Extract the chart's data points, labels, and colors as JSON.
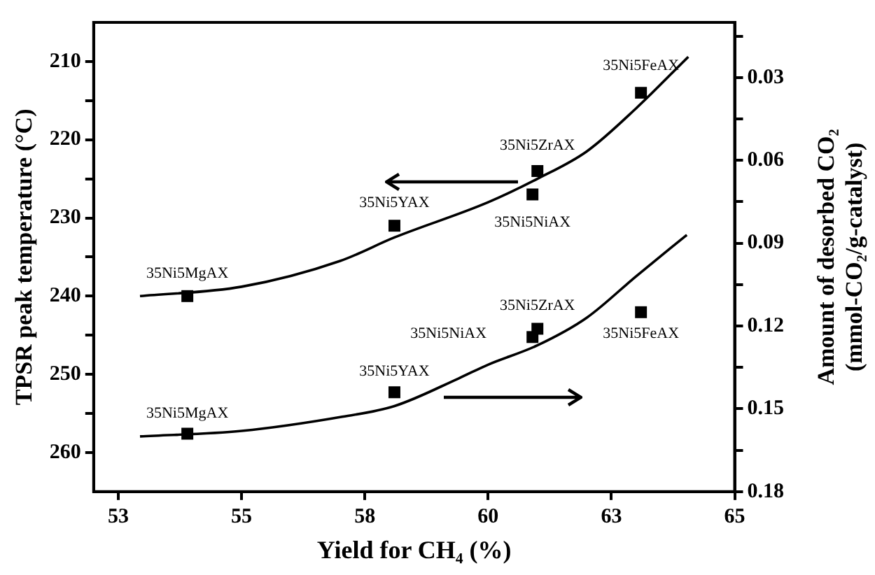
{
  "chart_data": {
    "type": "scatter",
    "xlabel": "Yield for CH₄ (%)",
    "ylabel": "TPSR peak temperature (°C)",
    "y2label": "Amount of desorbed CO₂\n(mmol-CO₂/g-catalyst)",
    "xlim": [
      52,
      65
    ],
    "xticks": [
      {
        "value": 52.5,
        "label": "53"
      },
      55,
      {
        "value": 57.5,
        "label": "58"
      },
      60,
      {
        "value": 62.5,
        "label": "63"
      },
      65
    ],
    "ylim": [
      265,
      205
    ],
    "yticks": [
      210,
      {
        "value": 215,
        "label": null
      },
      220,
      {
        "value": 225,
        "label": null
      },
      230,
      {
        "value": 235,
        "label": null
      },
      240,
      {
        "value": 245,
        "label": null
      },
      250,
      {
        "value": 255,
        "label": null
      },
      260
    ],
    "y2lim": [
      0.18,
      0.01
    ],
    "y2ticks": [
      {
        "value": 0.015,
        "label": null
      },
      0.03,
      {
        "value": 0.045,
        "label": null
      },
      0.06,
      {
        "value": 0.075,
        "label": null
      },
      0.09,
      {
        "value": 0.105,
        "label": null
      },
      0.12,
      {
        "value": 0.135,
        "label": null
      },
      0.15,
      {
        "value": 0.165,
        "label": null
      },
      0.18
    ],
    "marker": "square",
    "grid": false,
    "legend": false,
    "series": [
      {
        "type": "scatter",
        "axis": "y",
        "color": "#000000",
        "x": [
          53.9,
          58.1,
          60.9,
          61.0,
          63.1
        ],
        "values": [
          240,
          231,
          227,
          224,
          214
        ]
      },
      {
        "type": "scatter",
        "axis": "y2",
        "color": "#000000",
        "x": [
          53.9,
          58.1,
          60.9,
          61.0,
          63.1
        ],
        "values": [
          0.159,
          0.144,
          0.124,
          0.121,
          0.115
        ]
      },
      {
        "type": "line",
        "axis": "y",
        "color": "#000000",
        "marker": "none",
        "x": [
          52.94,
          55,
          57,
          58.1,
          60,
          61,
          62,
          63,
          64.06
        ],
        "values": [
          240,
          238.8,
          235.5,
          232.5,
          228,
          225,
          221.5,
          216,
          209.4
        ]
      },
      {
        "type": "line",
        "axis": "y2",
        "color": "#000000",
        "marker": "none",
        "x": [
          52.94,
          55,
          57,
          58.1,
          59.4,
          60,
          61,
          62,
          63,
          64.03
        ],
        "values": [
          0.16,
          0.158,
          0.153,
          0.149,
          0.139,
          0.134,
          0.127,
          0.117,
          0.102,
          0.087
        ]
      }
    ],
    "annotations": [
      {
        "text": "35Ni5MgAX",
        "x": 53.9,
        "y": 240
      },
      {
        "text": "35Ni5YAX",
        "x": 58.1,
        "y": 231
      },
      {
        "text": "35Ni5NiAX",
        "x": 60.9,
        "y": 227
      },
      {
        "text": "35Ni5ZrAX",
        "x": 61.0,
        "y": 224
      },
      {
        "text": "35Ni5FeAX",
        "x": 63.1,
        "y": 214
      },
      {
        "text": "35Ni5MgAX",
        "x": 53.9,
        "y": 257.5
      },
      {
        "text": "35Ni5YAX",
        "x": 58.1,
        "y": 252.3
      },
      {
        "text": "35Ni5NiAX",
        "x": 60.9,
        "y": 244.8
      },
      {
        "text": "35Ni5ZrAX",
        "x": 61.0,
        "y": 243.9
      },
      {
        "text": "35Ni5FeAX",
        "x": 63.1,
        "y": 242
      }
    ]
  }
}
